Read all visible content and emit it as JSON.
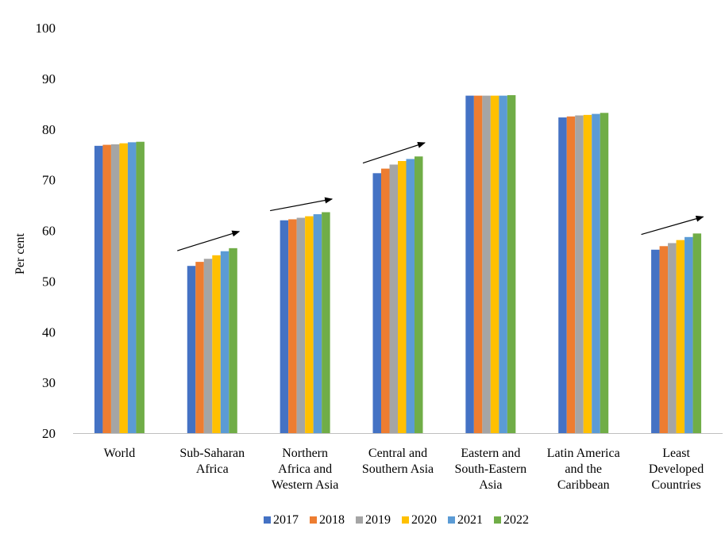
{
  "chart_data": {
    "type": "bar",
    "title": "",
    "xlabel": "",
    "ylabel": "Per cent",
    "ylim": [
      20,
      100
    ],
    "yticks": [
      20,
      30,
      40,
      50,
      60,
      70,
      80,
      90,
      100
    ],
    "grid": false,
    "legend": "bottom",
    "categories": [
      [
        "World"
      ],
      [
        "Sub-Saharan",
        "Africa"
      ],
      [
        "Northern",
        "Africa and",
        "Western Asia"
      ],
      [
        "Central and",
        "Southern Asia"
      ],
      [
        "Eastern and",
        "South-Eastern",
        "Asia"
      ],
      [
        "Latin America",
        "and the",
        "Caribbean"
      ],
      [
        "Least",
        "Developed",
        "Countries"
      ]
    ],
    "series": [
      {
        "name": "2017",
        "color": "#4472C4",
        "values": [
          76.7,
          53.0,
          62.0,
          71.3,
          86.6,
          82.3,
          56.2
        ]
      },
      {
        "name": "2018",
        "color": "#ED7D31",
        "values": [
          76.9,
          53.8,
          62.2,
          72.2,
          86.6,
          82.5,
          56.9
        ]
      },
      {
        "name": "2019",
        "color": "#A5A5A5",
        "values": [
          77.0,
          54.4,
          62.5,
          73.0,
          86.6,
          82.7,
          57.5
        ]
      },
      {
        "name": "2020",
        "color": "#FFC000",
        "values": [
          77.2,
          55.1,
          62.8,
          73.7,
          86.6,
          82.8,
          58.1
        ]
      },
      {
        "name": "2021",
        "color": "#5B9BD5",
        "values": [
          77.4,
          55.9,
          63.2,
          74.1,
          86.6,
          83.0,
          58.7
        ]
      },
      {
        "name": "2022",
        "color": "#70AD47",
        "values": [
          77.5,
          56.5,
          63.6,
          74.6,
          86.7,
          83.2,
          59.4
        ]
      }
    ],
    "annotations": [
      {
        "type": "arrow",
        "category_index": 1,
        "from_value": 56.0,
        "to_value": 59.8
      },
      {
        "type": "arrow",
        "category_index": 2,
        "from_value": 63.9,
        "to_value": 66.2
      },
      {
        "type": "arrow",
        "category_index": 3,
        "from_value": 73.3,
        "to_value": 77.3
      },
      {
        "type": "arrow",
        "category_index": 6,
        "from_value": 59.2,
        "to_value": 62.7
      }
    ]
  }
}
